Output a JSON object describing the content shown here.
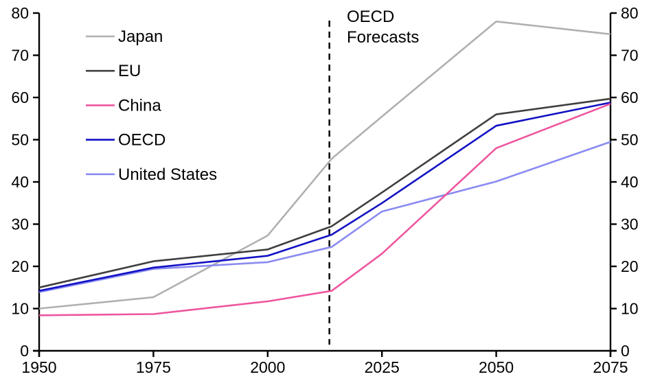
{
  "chart_data": {
    "type": "line",
    "title": "",
    "xlabel": "",
    "ylabel": "",
    "xlim": [
      1950,
      2075
    ],
    "ylim": [
      0,
      80
    ],
    "grid": false,
    "background": "#ffffff",
    "axis_color": "#000000",
    "x_tick_labels": [
      "1950",
      "1975",
      "2000",
      "2025",
      "2050",
      "2075"
    ],
    "y_tick_labels": [
      "0",
      "10",
      "20",
      "30",
      "40",
      "50",
      "60",
      "70",
      "80"
    ],
    "legend_position": "upper-left-inside",
    "forecast_line": {
      "x_year": 2013.5,
      "style": "dashed",
      "color": "#000000"
    },
    "annotation": {
      "lines": [
        "OECD",
        "Forecasts"
      ],
      "color": "#000000"
    },
    "x": [
      1950,
      1975,
      2000,
      2014,
      2025,
      2050,
      2075
    ],
    "series": [
      {
        "name": "Japan",
        "color": "#b0b0b0",
        "values": [
          10.0,
          12.7,
          27.3,
          45.5,
          55.5,
          78.0,
          75.0
        ]
      },
      {
        "name": "EU",
        "color": "#3f3f3f",
        "values": [
          15.0,
          21.2,
          24.0,
          29.5,
          37.5,
          56.0,
          59.7
        ]
      },
      {
        "name": "China",
        "color": "#ee559f",
        "values": [
          8.4,
          8.7,
          11.7,
          14.2,
          23.0,
          48.0,
          58.5
        ]
      },
      {
        "name": "OECD",
        "color": "#1111c4",
        "values": [
          14.2,
          19.7,
          22.5,
          27.5,
          35.0,
          53.3,
          58.8
        ]
      },
      {
        "name": "United States",
        "color": "#8a8af2",
        "values": [
          13.9,
          19.4,
          21.0,
          24.6,
          33.0,
          40.1,
          49.5
        ]
      }
    ]
  }
}
